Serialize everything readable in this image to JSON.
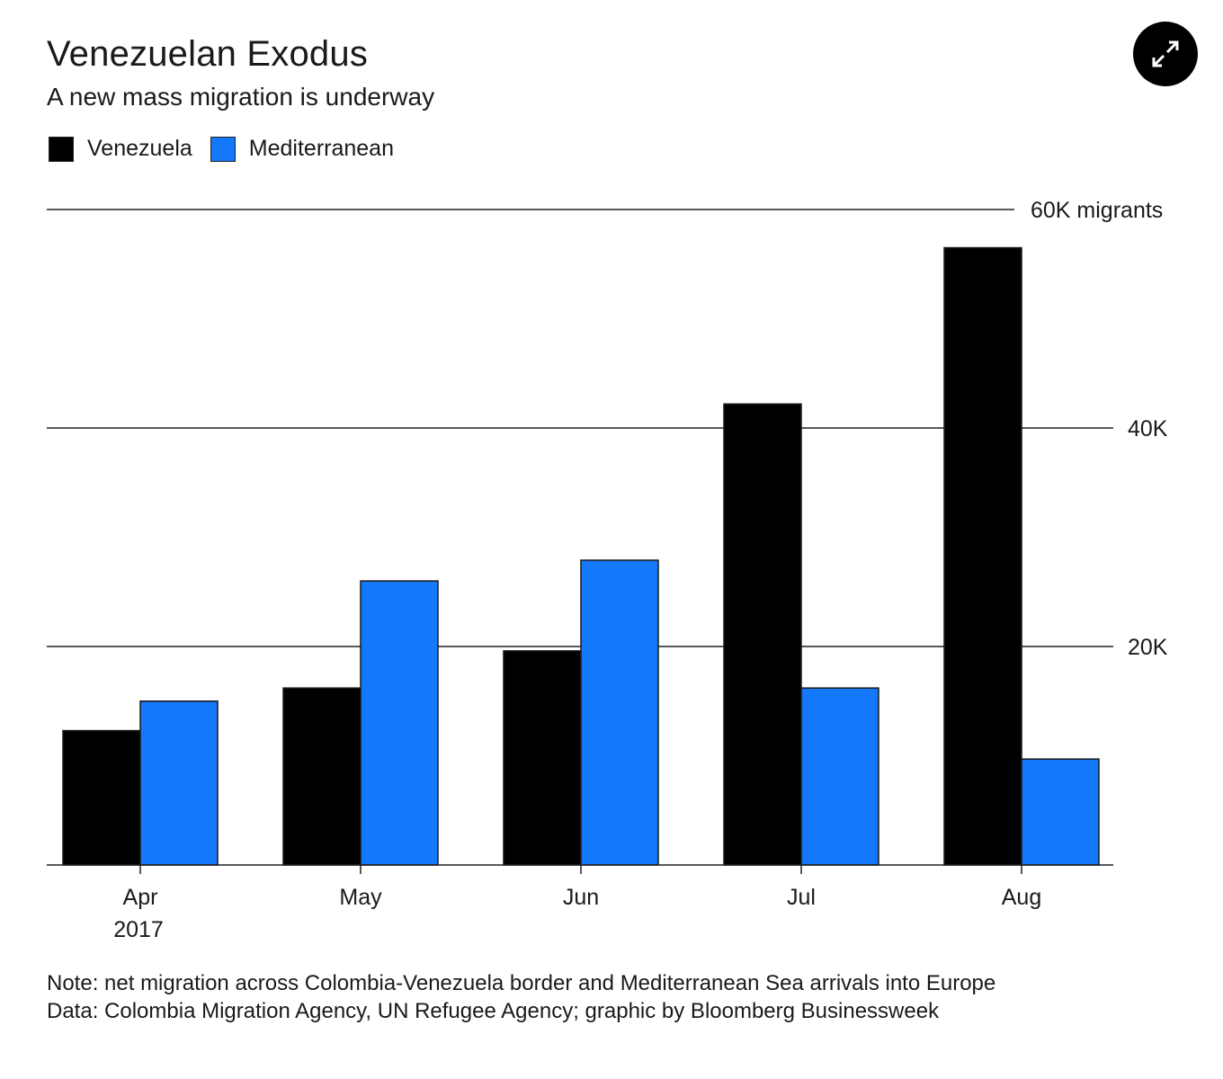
{
  "expand_button": {
    "icon": "expand-arrows-icon"
  },
  "chart_data": {
    "type": "bar",
    "title": "Venezuelan Exodus",
    "subtitle": "A new mass migration is underway",
    "categories": [
      "Apr",
      "May",
      "Jun",
      "Jul",
      "Aug"
    ],
    "category_sublabels": [
      "2017",
      "",
      "",
      "",
      ""
    ],
    "series": [
      {
        "name": "Venezuela",
        "color": "#000000",
        "values": [
          12300,
          16200,
          19600,
          42200,
          56500
        ]
      },
      {
        "name": "Mediterranean",
        "color": "#1478fa",
        "values": [
          15000,
          26000,
          27900,
          16200,
          9700
        ]
      }
    ],
    "xlabel": "",
    "ylabel": "",
    "ylim": [
      0,
      60000
    ],
    "yticks": [
      {
        "value": 20000,
        "label": "20K"
      },
      {
        "value": 40000,
        "label": "40K"
      },
      {
        "value": 60000,
        "label": "60K migrants"
      }
    ],
    "y_axis_side": "right",
    "grid": true,
    "legend_position": "top-left",
    "note": "Note: net migration across Colombia-Venezuela border and Mediterranean Sea arrivals into Europe",
    "source": "Data: Colombia Migration Agency, UN Refugee Agency; graphic by Bloomberg Businessweek"
  }
}
